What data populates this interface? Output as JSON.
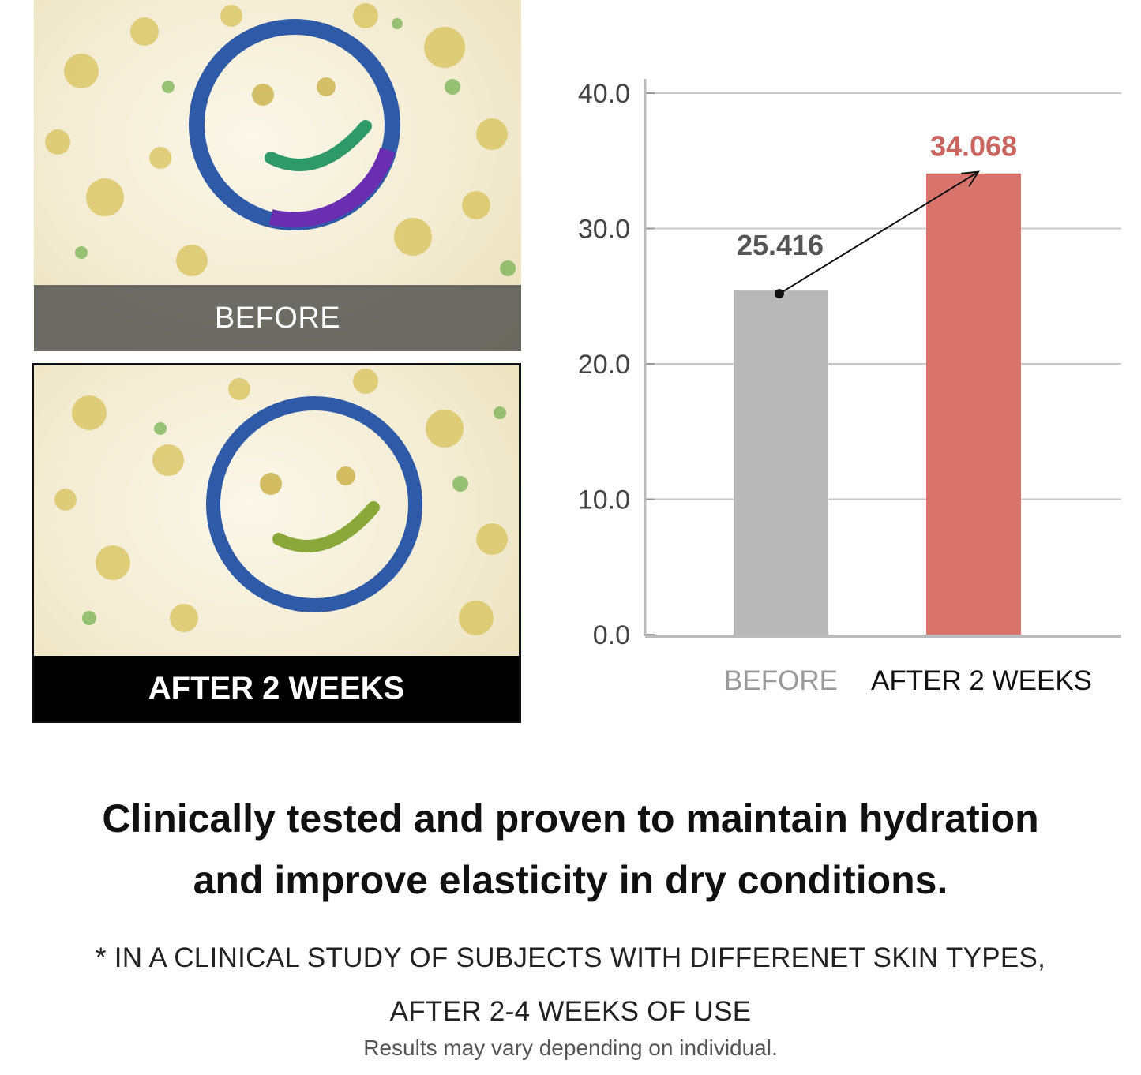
{
  "photos": {
    "before_label": "BEFORE",
    "after_label": "AFTER 2 WEEKS"
  },
  "chart_data": {
    "type": "bar",
    "categories": [
      "BEFORE",
      "AFTER 2 WEEKS"
    ],
    "values": [
      25.416,
      34.068
    ],
    "data_labels": [
      "25.416",
      "34.068"
    ],
    "colors": [
      "#b8b8b8",
      "#d9746c"
    ],
    "label_colors": [
      "#555555",
      "#c9665f"
    ],
    "category_label_colors": [
      "#9a9a9a",
      "#111111"
    ],
    "yticks": [
      "0.0",
      "10.0",
      "20.0",
      "30.0",
      "40.0"
    ],
    "ylim": [
      0,
      40
    ],
    "grid": true,
    "annotation": "arrow from BEFORE bar to AFTER 2 WEEKS bar"
  },
  "text": {
    "headline_line1": "Clinically tested and proven to maintain hydration",
    "headline_line2": "and improve elasticity in dry conditions.",
    "footnote_line1": "* IN A CLINICAL STUDY OF SUBJECTS WITH DIFFERENET SKIN TYPES,",
    "footnote_line2": "AFTER 2-4 WEEKS OF USE",
    "disclaimer": "Results may vary depending on individual."
  }
}
